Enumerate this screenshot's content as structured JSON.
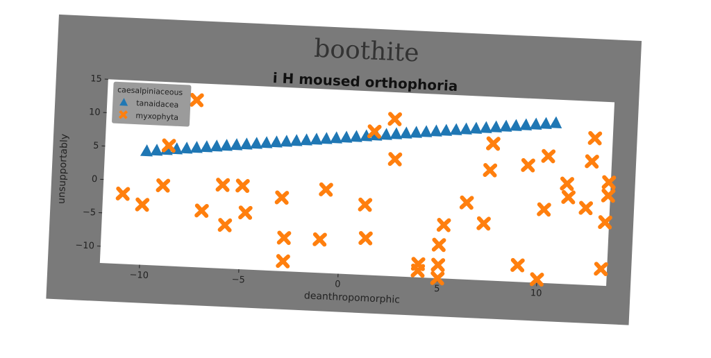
{
  "chart_data": {
    "type": "scatter",
    "suptitle": "boothite",
    "title": "i H moused orthophoria",
    "xlabel": "deanthropomorphic",
    "ylabel": "unsupportably",
    "xlim": [
      -12,
      13.5
    ],
    "ylim": [
      -12.5,
      15
    ],
    "xticks": [
      -10,
      -5,
      0,
      5,
      10
    ],
    "yticks": [
      -10,
      -5,
      0,
      5,
      10,
      15
    ],
    "grid": false,
    "legend": {
      "title": "caesalpiniaceous",
      "placement": "top-left",
      "entries": [
        "tanaidacea",
        "myxophyta"
      ]
    },
    "series": [
      {
        "name": "tanaidacea",
        "marker": "triangle",
        "color": "#1f77b4",
        "x": [
          -9.9,
          -9.4,
          -8.9,
          -8.4,
          -7.9,
          -7.4,
          -6.9,
          -6.4,
          -5.9,
          -5.4,
          -4.9,
          -4.4,
          -3.9,
          -3.4,
          -2.9,
          -2.4,
          -1.9,
          -1.4,
          -0.9,
          -0.4,
          0.1,
          0.6,
          1.1,
          1.6,
          2.1,
          2.6,
          3.1,
          3.6,
          4.1,
          4.6,
          5.1,
          5.6,
          6.1,
          6.6,
          7.1,
          7.6,
          8.1,
          8.6,
          9.1,
          9.6,
          10.1,
          10.6
        ],
        "y": [
          4.5,
          4.67,
          4.84,
          5.01,
          5.18,
          5.35,
          5.52,
          5.69,
          5.86,
          6.03,
          6.2,
          6.37,
          6.54,
          6.71,
          6.88,
          7.05,
          7.22,
          7.39,
          7.56,
          7.73,
          7.9,
          8.07,
          8.24,
          8.41,
          8.58,
          8.75,
          8.92,
          9.09,
          9.26,
          9.43,
          9.6,
          9.77,
          9.94,
          10.11,
          10.28,
          10.45,
          10.62,
          10.79,
          10.96,
          11.13,
          11.3,
          11.47
        ]
      },
      {
        "name": "myxophyta",
        "marker": "x",
        "color": "#ff7f0e",
        "x": [
          -11,
          -10,
          -9,
          -8.8,
          -7.5,
          -7,
          -6,
          -5.8,
          -5,
          -4.8,
          -3,
          -2.8,
          -2.8,
          -1,
          -0.8,
          1.2,
          1.3,
          1.5,
          2.5,
          2.6,
          4,
          4,
          5,
          5,
          5,
          5.2,
          6.3,
          7.2,
          7.4,
          7.5,
          7.5,
          9,
          9.3,
          10,
          10.2,
          10.3,
          11.3,
          11.4,
          12.3,
          12.5,
          12.6,
          13.2,
          13.3,
          13.4,
          13.4
        ],
        "y": [
          -2,
          -3.5,
          -0.5,
          5.5,
          12.5,
          -4,
          0,
          -6,
          0,
          -4,
          -1.5,
          -7.5,
          -11,
          -7.5,
          0,
          -2,
          -7,
          9,
          11,
          5,
          -10.5,
          -11.5,
          -12.5,
          -10.5,
          -7.5,
          -4.5,
          -1,
          -4,
          4,
          8,
          8,
          -10,
          5,
          -12,
          -1.5,
          6.5,
          2.5,
          0.5,
          -1,
          6,
          9.5,
          -10,
          -3,
          1,
          3
        ]
      }
    ]
  }
}
